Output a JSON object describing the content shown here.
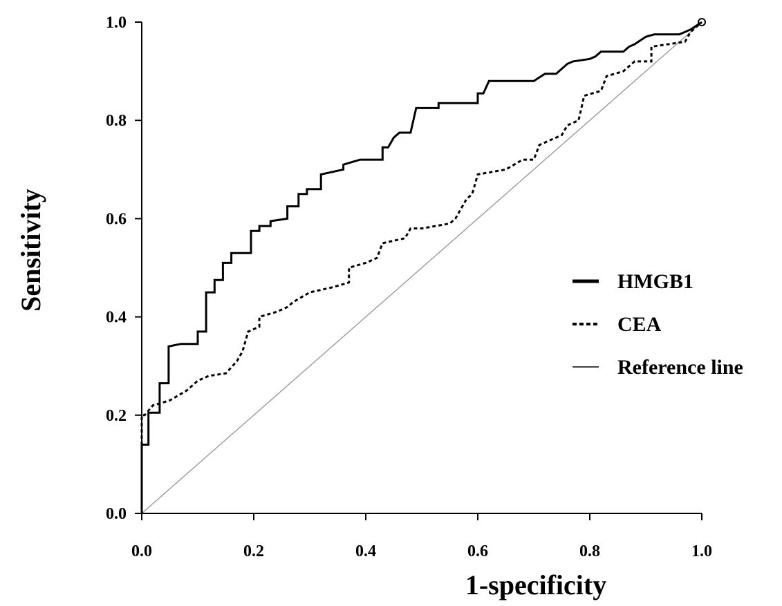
{
  "chart_data": {
    "type": "line",
    "title": "",
    "xlabel": "1-specificity",
    "ylabel": "Sensitivity",
    "xlim": [
      0,
      1
    ],
    "ylim": [
      0,
      1
    ],
    "x_ticks": [
      "0.0",
      "0.2",
      "0.4",
      "0.6",
      "0.8",
      "1.0"
    ],
    "y_ticks": [
      "0.0",
      "0.2",
      "0.4",
      "0.6",
      "0.8",
      "1.0"
    ],
    "grid": false,
    "legend_position": "right",
    "series": [
      {
        "name": "HMGB1",
        "style": "solid-thick",
        "color": "#000000",
        "points": [
          [
            0.0,
            0.0
          ],
          [
            0.0,
            0.14
          ],
          [
            0.012,
            0.14
          ],
          [
            0.012,
            0.205
          ],
          [
            0.032,
            0.205
          ],
          [
            0.032,
            0.265
          ],
          [
            0.048,
            0.265
          ],
          [
            0.048,
            0.34
          ],
          [
            0.07,
            0.345
          ],
          [
            0.1,
            0.345
          ],
          [
            0.1,
            0.37
          ],
          [
            0.115,
            0.37
          ],
          [
            0.115,
            0.45
          ],
          [
            0.13,
            0.45
          ],
          [
            0.13,
            0.475
          ],
          [
            0.145,
            0.475
          ],
          [
            0.145,
            0.51
          ],
          [
            0.16,
            0.51
          ],
          [
            0.16,
            0.53
          ],
          [
            0.195,
            0.53
          ],
          [
            0.195,
            0.575
          ],
          [
            0.21,
            0.575
          ],
          [
            0.21,
            0.585
          ],
          [
            0.23,
            0.585
          ],
          [
            0.23,
            0.595
          ],
          [
            0.26,
            0.6
          ],
          [
            0.26,
            0.625
          ],
          [
            0.28,
            0.625
          ],
          [
            0.28,
            0.65
          ],
          [
            0.295,
            0.65
          ],
          [
            0.295,
            0.66
          ],
          [
            0.32,
            0.66
          ],
          [
            0.32,
            0.69
          ],
          [
            0.36,
            0.7
          ],
          [
            0.36,
            0.71
          ],
          [
            0.39,
            0.72
          ],
          [
            0.43,
            0.72
          ],
          [
            0.43,
            0.745
          ],
          [
            0.44,
            0.745
          ],
          [
            0.45,
            0.765
          ],
          [
            0.46,
            0.775
          ],
          [
            0.48,
            0.775
          ],
          [
            0.49,
            0.825
          ],
          [
            0.53,
            0.825
          ],
          [
            0.53,
            0.835
          ],
          [
            0.6,
            0.835
          ],
          [
            0.6,
            0.855
          ],
          [
            0.61,
            0.855
          ],
          [
            0.62,
            0.88
          ],
          [
            0.7,
            0.88
          ],
          [
            0.72,
            0.895
          ],
          [
            0.74,
            0.895
          ],
          [
            0.76,
            0.915
          ],
          [
            0.77,
            0.92
          ],
          [
            0.8,
            0.925
          ],
          [
            0.81,
            0.93
          ],
          [
            0.82,
            0.94
          ],
          [
            0.86,
            0.94
          ],
          [
            0.87,
            0.95
          ],
          [
            0.88,
            0.955
          ],
          [
            0.9,
            0.97
          ],
          [
            0.915,
            0.975
          ],
          [
            0.96,
            0.975
          ],
          [
            0.98,
            0.985
          ],
          [
            1.0,
            1.0
          ]
        ]
      },
      {
        "name": "CEA",
        "style": "dotted",
        "color": "#000000",
        "points": [
          [
            0.0,
            0.0
          ],
          [
            0.0,
            0.2
          ],
          [
            0.005,
            0.2
          ],
          [
            0.02,
            0.22
          ],
          [
            0.05,
            0.23
          ],
          [
            0.08,
            0.25
          ],
          [
            0.1,
            0.27
          ],
          [
            0.12,
            0.28
          ],
          [
            0.15,
            0.285
          ],
          [
            0.17,
            0.31
          ],
          [
            0.18,
            0.33
          ],
          [
            0.19,
            0.37
          ],
          [
            0.21,
            0.38
          ],
          [
            0.21,
            0.4
          ],
          [
            0.24,
            0.41
          ],
          [
            0.26,
            0.42
          ],
          [
            0.27,
            0.43
          ],
          [
            0.3,
            0.45
          ],
          [
            0.34,
            0.46
          ],
          [
            0.37,
            0.47
          ],
          [
            0.37,
            0.5
          ],
          [
            0.4,
            0.51
          ],
          [
            0.42,
            0.52
          ],
          [
            0.43,
            0.55
          ],
          [
            0.47,
            0.56
          ],
          [
            0.48,
            0.58
          ],
          [
            0.5,
            0.58
          ],
          [
            0.55,
            0.59
          ],
          [
            0.56,
            0.6
          ],
          [
            0.57,
            0.62
          ],
          [
            0.58,
            0.64
          ],
          [
            0.59,
            0.65
          ],
          [
            0.6,
            0.69
          ],
          [
            0.65,
            0.7
          ],
          [
            0.68,
            0.72
          ],
          [
            0.7,
            0.72
          ],
          [
            0.71,
            0.75
          ],
          [
            0.73,
            0.76
          ],
          [
            0.75,
            0.77
          ],
          [
            0.76,
            0.79
          ],
          [
            0.78,
            0.8
          ],
          [
            0.79,
            0.85
          ],
          [
            0.82,
            0.86
          ],
          [
            0.83,
            0.89
          ],
          [
            0.86,
            0.9
          ],
          [
            0.88,
            0.92
          ],
          [
            0.91,
            0.92
          ],
          [
            0.91,
            0.95
          ],
          [
            0.94,
            0.955
          ],
          [
            0.97,
            0.96
          ],
          [
            0.98,
            0.98
          ],
          [
            1.0,
            1.0
          ]
        ]
      },
      {
        "name": "Reference line",
        "style": "solid-thin",
        "color": "#9a9a9a",
        "points": [
          [
            0.0,
            0.0
          ],
          [
            1.0,
            1.0
          ]
        ]
      }
    ]
  }
}
